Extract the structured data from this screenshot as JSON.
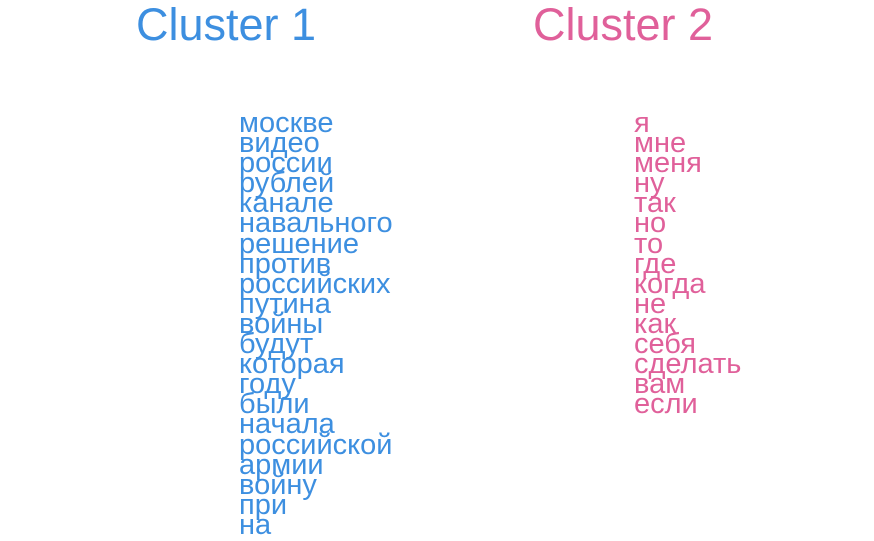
{
  "clusters": [
    {
      "title": "Cluster 1",
      "color": "#3d8fe0",
      "words": [
        "москве",
        "видео",
        "россии",
        "рублей",
        "канале",
        "навального",
        "решение",
        "против",
        "российских",
        "путина",
        "войны",
        "будут",
        "которая",
        "году",
        "были",
        "начала",
        "российской",
        "армии",
        "войну",
        "при",
        "на"
      ]
    },
    {
      "title": "Cluster 2",
      "color": "#e0609a",
      "words": [
        "я",
        "мне",
        "меня",
        "ну",
        "так",
        "но",
        "то",
        "где",
        "когда",
        "не",
        "как",
        "себя",
        "сделать",
        "вам",
        "если"
      ]
    }
  ]
}
